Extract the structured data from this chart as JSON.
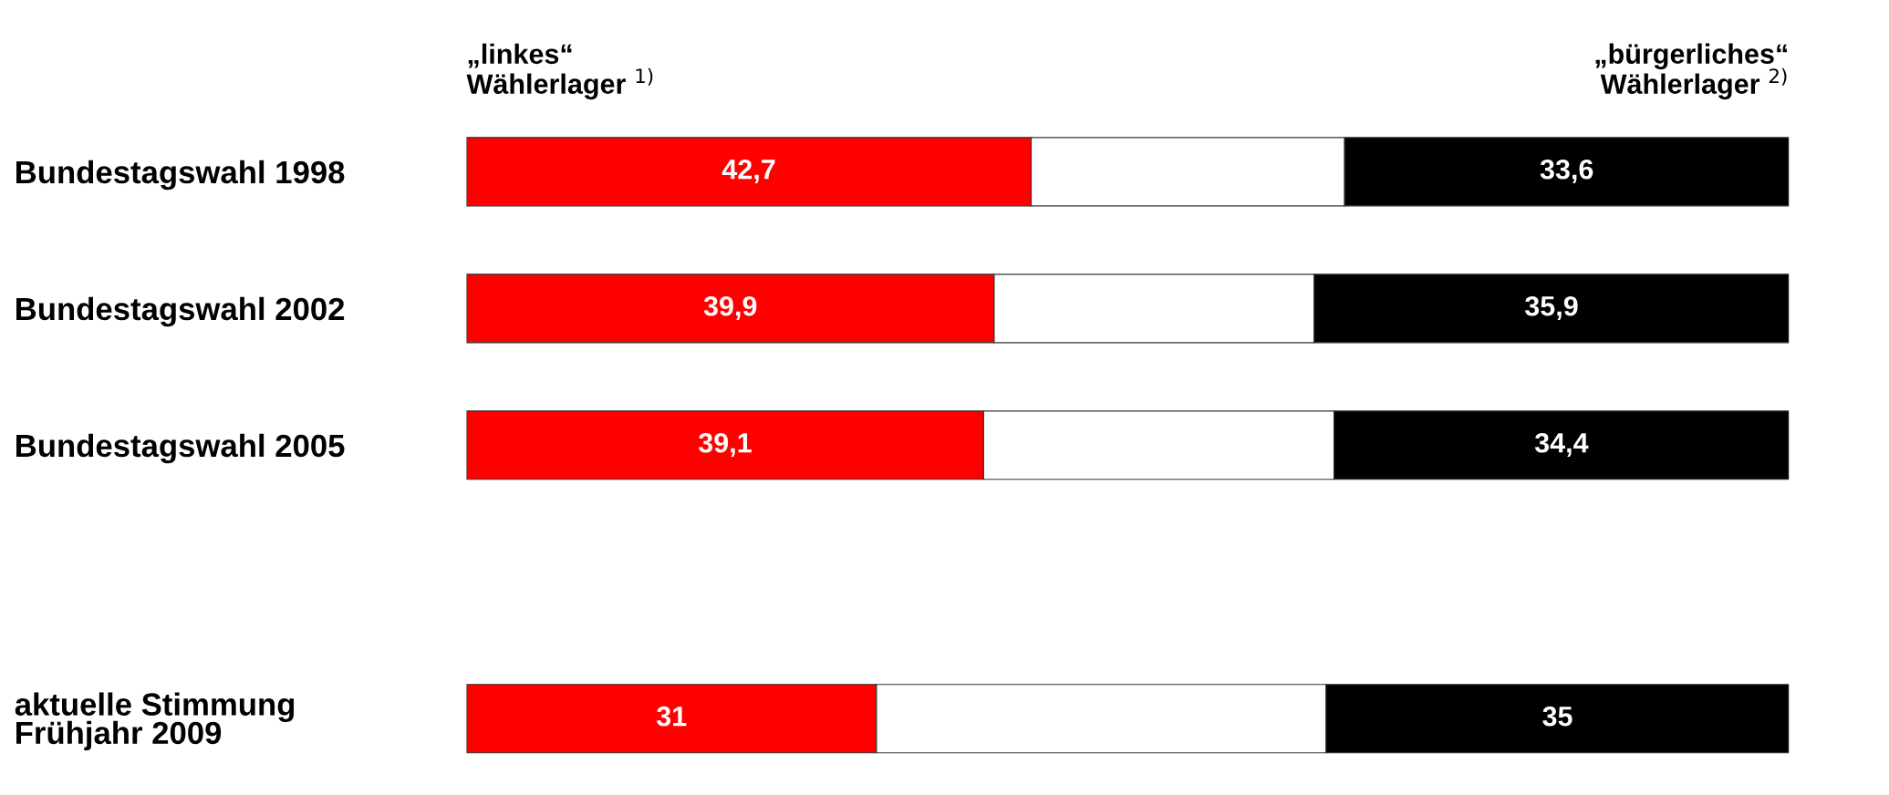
{
  "chart_data": {
    "type": "bar",
    "orientation": "horizontal",
    "stacked": true,
    "legend": false,
    "grid": false,
    "tick_labels": "y",
    "categories": [
      "Bundestagswahl 1998",
      "Bundestagswahl 2002",
      "Bundestagswahl 2005",
      null,
      "aktuelle Stimmung\nFrühjahr 2009"
    ],
    "series": [
      {
        "name": "„linkes“\nWählerlager $^{1)}$",
        "color": "#ff0000",
        "values": [
          42.7,
          39.9,
          39.1,
          null,
          31
        ],
        "value_labels": [
          "42,7",
          "39,9",
          "39,1",
          null,
          "31"
        ]
      },
      {
        "color": "#ffffff",
        "values": [
          23.7,
          24.2,
          26.5,
          null,
          34
        ]
      },
      {
        "name": "„bürgerliches“\nWählerlager $^{2)}$",
        "color": "#000000",
        "values": [
          33.6,
          35.9,
          34.4,
          null,
          35
        ],
        "value_labels": [
          "33,6",
          "35,9",
          "34,4",
          null,
          "35"
        ]
      }
    ]
  }
}
